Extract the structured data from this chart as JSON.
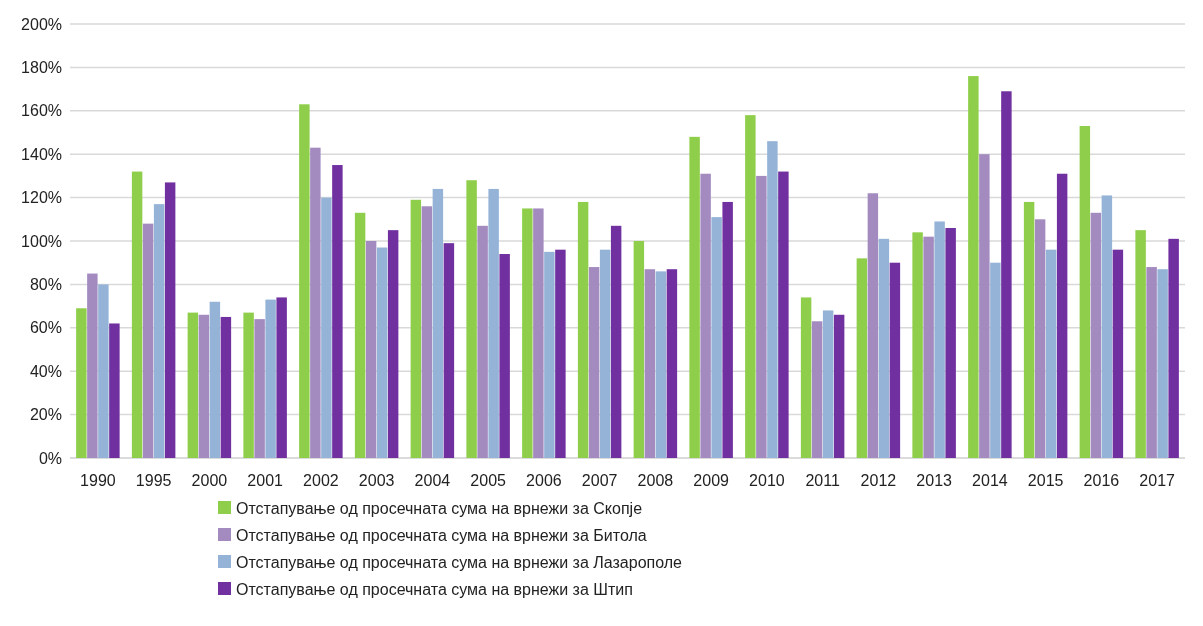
{
  "chart_data": {
    "type": "bar",
    "categories": [
      "1990",
      "1995",
      "2000",
      "2001",
      "2002",
      "2003",
      "2004",
      "2005",
      "2006",
      "2007",
      "2008",
      "2009",
      "2010",
      "2011",
      "2012",
      "2013",
      "2014",
      "2015",
      "2016",
      "2017"
    ],
    "series": [
      {
        "name": "Отстапување од просечната сума на врнежи за Скопје",
        "color": "#8fce4a",
        "values": [
          69,
          132,
          67,
          67,
          163,
          113,
          119,
          128,
          115,
          118,
          100,
          148,
          158,
          74,
          92,
          104,
          176,
          118,
          153,
          105
        ]
      },
      {
        "name": "Отстапување од просечната сума на врнежи за Битола",
        "color": "#a38bc0",
        "values": [
          85,
          108,
          66,
          64,
          143,
          100,
          116,
          107,
          115,
          88,
          87,
          131,
          130,
          63,
          122,
          102,
          140,
          110,
          113,
          88
        ]
      },
      {
        "name": "Отстапување од просечната сума на врнежи за Лазарополе",
        "color": "#95b3d7",
        "values": [
          80,
          117,
          72,
          73,
          120,
          97,
          124,
          124,
          95,
          96,
          86,
          111,
          146,
          68,
          101,
          109,
          90,
          96,
          121,
          87
        ]
      },
      {
        "name": "Отстапување од просечната сума на врнежи за Штип",
        "color": "#7030a0",
        "values": [
          62,
          127,
          65,
          74,
          135,
          105,
          99,
          94,
          96,
          107,
          87,
          118,
          132,
          66,
          90,
          106,
          169,
          131,
          96,
          101
        ]
      }
    ],
    "ylim": [
      0,
      200
    ],
    "yticks": [
      {
        "value": 0,
        "label": "0%"
      },
      {
        "value": 20,
        "label": "20%"
      },
      {
        "value": 40,
        "label": "40%"
      },
      {
        "value": 60,
        "label": "60%"
      },
      {
        "value": 80,
        "label": "80%"
      },
      {
        "value": 100,
        "label": "100%"
      },
      {
        "value": 120,
        "label": "120%"
      },
      {
        "value": 140,
        "label": "140%"
      },
      {
        "value": 160,
        "label": "160%"
      },
      {
        "value": 180,
        "label": "180%"
      },
      {
        "value": 200,
        "label": "200%"
      }
    ],
    "grid": "y",
    "legend": "bottom"
  }
}
